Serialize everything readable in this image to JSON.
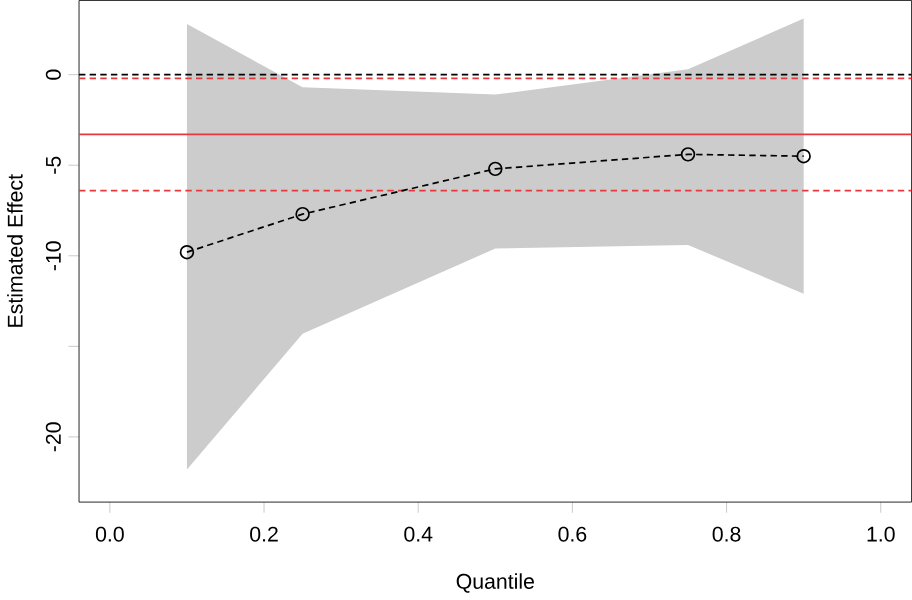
{
  "chart_data": {
    "type": "line",
    "xlabel": "Quantile",
    "ylabel": "Estimated Effect",
    "x": [
      0.1,
      0.25,
      0.5,
      0.75,
      0.9
    ],
    "series": [
      {
        "color": "#000000",
        "values": [
          -9.8,
          -7.7,
          -5.2,
          -4.4,
          -4.5
        ],
        "lower": [
          -21.8,
          -14.3,
          -9.6,
          -9.4,
          -12.1
        ],
        "upper": [
          2.8,
          -0.7,
          -1.1,
          0.3,
          3.1
        ]
      }
    ],
    "marker": "circle",
    "line_style": "dashed",
    "grid": false,
    "xlim": [
      -0.04,
      1.04
    ],
    "ylim": [
      -23.6,
      4.1
    ],
    "xticks": [
      {
        "value": 0.0,
        "label": "0.0"
      },
      {
        "value": 0.2,
        "label": "0.2"
      },
      {
        "value": 0.4,
        "label": "0.4"
      },
      {
        "value": 0.6,
        "label": "0.6"
      },
      {
        "value": 0.8,
        "label": "0.8"
      },
      {
        "value": 1.0,
        "label": "1.0"
      }
    ],
    "yticks": [
      -20,
      {
        "value": -15,
        "label": null
      },
      -10,
      -5,
      0
    ],
    "ref_lines": [
      {
        "axis": "y",
        "value": 0,
        "color": "#000000",
        "line_style": "dashed"
      },
      {
        "axis": "y",
        "value": -0.2,
        "color": "#e8383d",
        "line_style": "dashed"
      },
      {
        "axis": "y",
        "value": -3.3,
        "color": "#e8383d",
        "line_style": "solid"
      },
      {
        "axis": "y",
        "value": -6.4,
        "color": "#e8383d",
        "line_style": "dashed"
      }
    ]
  }
}
